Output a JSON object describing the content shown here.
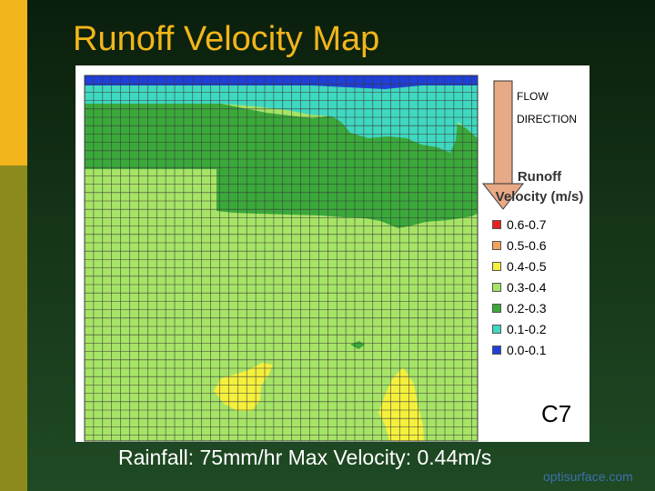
{
  "slide": {
    "title": "Runoff Velocity Map",
    "caption": "Rainfall: 75mm/hr   Max Velocity: 0.44m/s",
    "watermark": "optisurface.com",
    "colors": {
      "title": "#f2b51b",
      "accent_bar": "#f2b51b",
      "accent_bar_lower": "#8c8a1d"
    }
  },
  "chart_data": {
    "type": "heatmap",
    "plot_label": "C7",
    "flow_direction_label_1": "FLOW",
    "flow_direction_label_2": "DIRECTION",
    "legend_title_1": "Runoff",
    "legend_title_2": "Velocity (m/s)",
    "legend": [
      {
        "label": "0.6-0.7",
        "color": "#e82020"
      },
      {
        "label": "0.5-0.6",
        "color": "#f2a25a"
      },
      {
        "label": "0.4-0.5",
        "color": "#f5f03c"
      },
      {
        "label": "0.3-0.4",
        "color": "#a6e466"
      },
      {
        "label": "0.2-0.3",
        "color": "#3aa93a"
      },
      {
        "label": "0.1-0.2",
        "color": "#3fd8c0"
      },
      {
        "label": "0.0-0.1",
        "color": "#1f3fd8"
      }
    ],
    "zones": [
      {
        "range": "0.0-0.1",
        "region": "top strip"
      },
      {
        "range": "0.1-0.2",
        "region": "upper band"
      },
      {
        "range": "0.2-0.3",
        "region": "mid band and small island"
      },
      {
        "range": "0.3-0.4",
        "region": "lower field"
      },
      {
        "range": "0.4-0.5",
        "region": "two lower patches"
      }
    ],
    "max_velocity": 0.44,
    "grid": true
  }
}
